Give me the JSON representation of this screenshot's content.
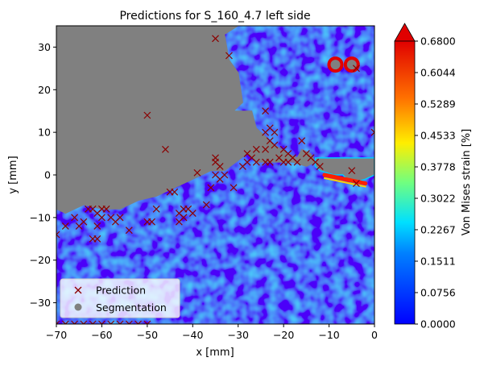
{
  "chart_data": {
    "type": "heatmap",
    "title": "Predictions for S_160_4.7 left side",
    "xlabel": "x [mm]",
    "ylabel": "y [mm]",
    "xlim": [
      -70,
      0
    ],
    "ylim": [
      -35,
      35
    ],
    "xticks": [
      "−70",
      "−60",
      "−50",
      "−40",
      "−30",
      "−20",
      "−10",
      "0"
    ],
    "xtick_values": [
      -70,
      -60,
      -50,
      -40,
      -30,
      -20,
      -10,
      0
    ],
    "yticks": [
      "−30",
      "−20",
      "−10",
      "0",
      "10",
      "20",
      "30"
    ],
    "ytick_values": [
      -30,
      -20,
      -10,
      0,
      10,
      20,
      30
    ],
    "colorbar": {
      "label": "Von Mises strain [%]",
      "ticks": [
        "0.0000",
        "0.0756",
        "0.1511",
        "0.2267",
        "0.3022",
        "0.3778",
        "0.4533",
        "0.5289",
        "0.6044",
        "0.6800"
      ],
      "tick_values": [
        0.0,
        0.0756,
        0.1511,
        0.2267,
        0.3022,
        0.3778,
        0.4533,
        0.5289,
        0.6044,
        0.68
      ],
      "range": [
        0.0,
        0.68
      ],
      "extend": "max",
      "colormap": "jet"
    },
    "segmentation_boundary": [
      [
        -70,
        35
      ],
      [
        -30,
        35
      ],
      [
        -33,
        33
      ],
      [
        -32,
        27
      ],
      [
        -30,
        24
      ],
      [
        -29,
        17
      ],
      [
        -31,
        15
      ],
      [
        -27,
        15
      ],
      [
        -26,
        11
      ],
      [
        -24,
        9
      ],
      [
        -22,
        7
      ],
      [
        -19,
        5
      ],
      [
        -17,
        4
      ],
      [
        -16,
        6
      ],
      [
        -14,
        5
      ],
      [
        -13,
        3
      ],
      [
        -15,
        2
      ],
      [
        -18,
        3
      ],
      [
        -21,
        3
      ],
      [
        -26,
        3
      ],
      [
        -28,
        5
      ],
      [
        -33,
        1
      ],
      [
        -36,
        1
      ],
      [
        -40,
        -1
      ],
      [
        -44,
        -3
      ],
      [
        -48,
        -5
      ],
      [
        -52,
        -6
      ],
      [
        -56,
        -8
      ],
      [
        -60,
        -8
      ],
      [
        -64,
        -7
      ],
      [
        -68,
        -9
      ],
      [
        -70,
        -8
      ]
    ],
    "segmentation_notch": [
      [
        -13,
        4
      ],
      [
        -8,
        4
      ],
      [
        -4,
        4
      ],
      [
        -1,
        4
      ],
      [
        0,
        4
      ],
      [
        0,
        0
      ],
      [
        -2,
        -1
      ],
      [
        -5,
        -2
      ],
      [
        -7,
        0
      ],
      [
        -9,
        0
      ],
      [
        -12,
        1
      ],
      [
        -13,
        2
      ]
    ],
    "segmentation_blobs": [
      {
        "cx": -8.6,
        "cy": 25.9,
        "r": 1.3
      },
      {
        "cx": -5.0,
        "cy": 25.9,
        "r": 1.6
      }
    ],
    "hotspots": [
      {
        "x1": -11,
        "y1": 0,
        "x2": -2,
        "y2": -2,
        "value": 0.68
      },
      {
        "cx": -8.6,
        "cy": 25.9,
        "value": 0.68
      },
      {
        "cx": -5.0,
        "cy": 25.9,
        "value": 0.68
      }
    ],
    "series": [
      {
        "name": "Prediction",
        "marker": "x",
        "color": "#8b0000",
        "points": [
          [
            -35,
            32
          ],
          [
            -32,
            28
          ],
          [
            -50,
            14
          ],
          [
            -24,
            15
          ],
          [
            -46,
            6
          ],
          [
            -23,
            11
          ],
          [
            -24,
            10
          ],
          [
            -22,
            10
          ],
          [
            -23,
            8
          ],
          [
            -22,
            7
          ],
          [
            -16,
            8
          ],
          [
            -24,
            6
          ],
          [
            -26,
            6
          ],
          [
            -28,
            5
          ],
          [
            -27,
            4
          ],
          [
            -20,
            6
          ],
          [
            -19,
            5
          ],
          [
            -18,
            4
          ],
          [
            -21,
            4
          ],
          [
            -20,
            3
          ],
          [
            -19,
            3
          ],
          [
            -17,
            3
          ],
          [
            -14,
            4
          ],
          [
            -15,
            5
          ],
          [
            -13,
            3
          ],
          [
            -12,
            2
          ],
          [
            -24,
            3
          ],
          [
            -23,
            3
          ],
          [
            -26,
            3
          ],
          [
            -28,
            3
          ],
          [
            -29,
            2
          ],
          [
            -35,
            4
          ],
          [
            -35,
            3
          ],
          [
            -34,
            2
          ],
          [
            -35,
            0
          ],
          [
            -34,
            -1
          ],
          [
            -33,
            0
          ],
          [
            -31,
            -3
          ],
          [
            -39,
            0.5
          ],
          [
            -36,
            -3
          ],
          [
            -37,
            -7
          ],
          [
            -41,
            -8
          ],
          [
            -44,
            -4
          ],
          [
            -45,
            -4
          ],
          [
            -42,
            -8
          ],
          [
            -43,
            -9
          ],
          [
            -42,
            -10
          ],
          [
            -43,
            -11
          ],
          [
            -40,
            -9
          ],
          [
            -48,
            -8
          ],
          [
            -50,
            -11
          ],
          [
            -49,
            -11
          ],
          [
            -54,
            -13
          ],
          [
            -56,
            -10
          ],
          [
            -57,
            -11
          ],
          [
            -58,
            -10
          ],
          [
            -59,
            -8
          ],
          [
            -60,
            -8
          ],
          [
            -60,
            -10
          ],
          [
            -61,
            -9
          ],
          [
            -61,
            -12
          ],
          [
            -62,
            -8
          ],
          [
            -63,
            -8
          ],
          [
            -64,
            -11
          ],
          [
            -65,
            -12
          ],
          [
            -66,
            -10
          ],
          [
            -68,
            -12
          ],
          [
            -70,
            -14
          ],
          [
            -61,
            -15
          ],
          [
            -62,
            -15
          ],
          [
            -5,
            1
          ],
          [
            -4,
            -2
          ],
          [
            0,
            10
          ],
          [
            -4,
            25
          ],
          [
            -70,
            -35
          ],
          [
            -68,
            -35
          ],
          [
            -66,
            -35
          ],
          [
            -64,
            -35
          ],
          [
            -62,
            -35
          ],
          [
            -60,
            -35
          ],
          [
            -58,
            -35
          ],
          [
            -56,
            -35
          ],
          [
            -54,
            -35
          ],
          [
            -52,
            -35
          ],
          [
            -50,
            -35
          ]
        ]
      },
      {
        "name": "Segmentation",
        "marker": "o",
        "color": "#808080"
      }
    ],
    "legend_position": "lower-left"
  }
}
